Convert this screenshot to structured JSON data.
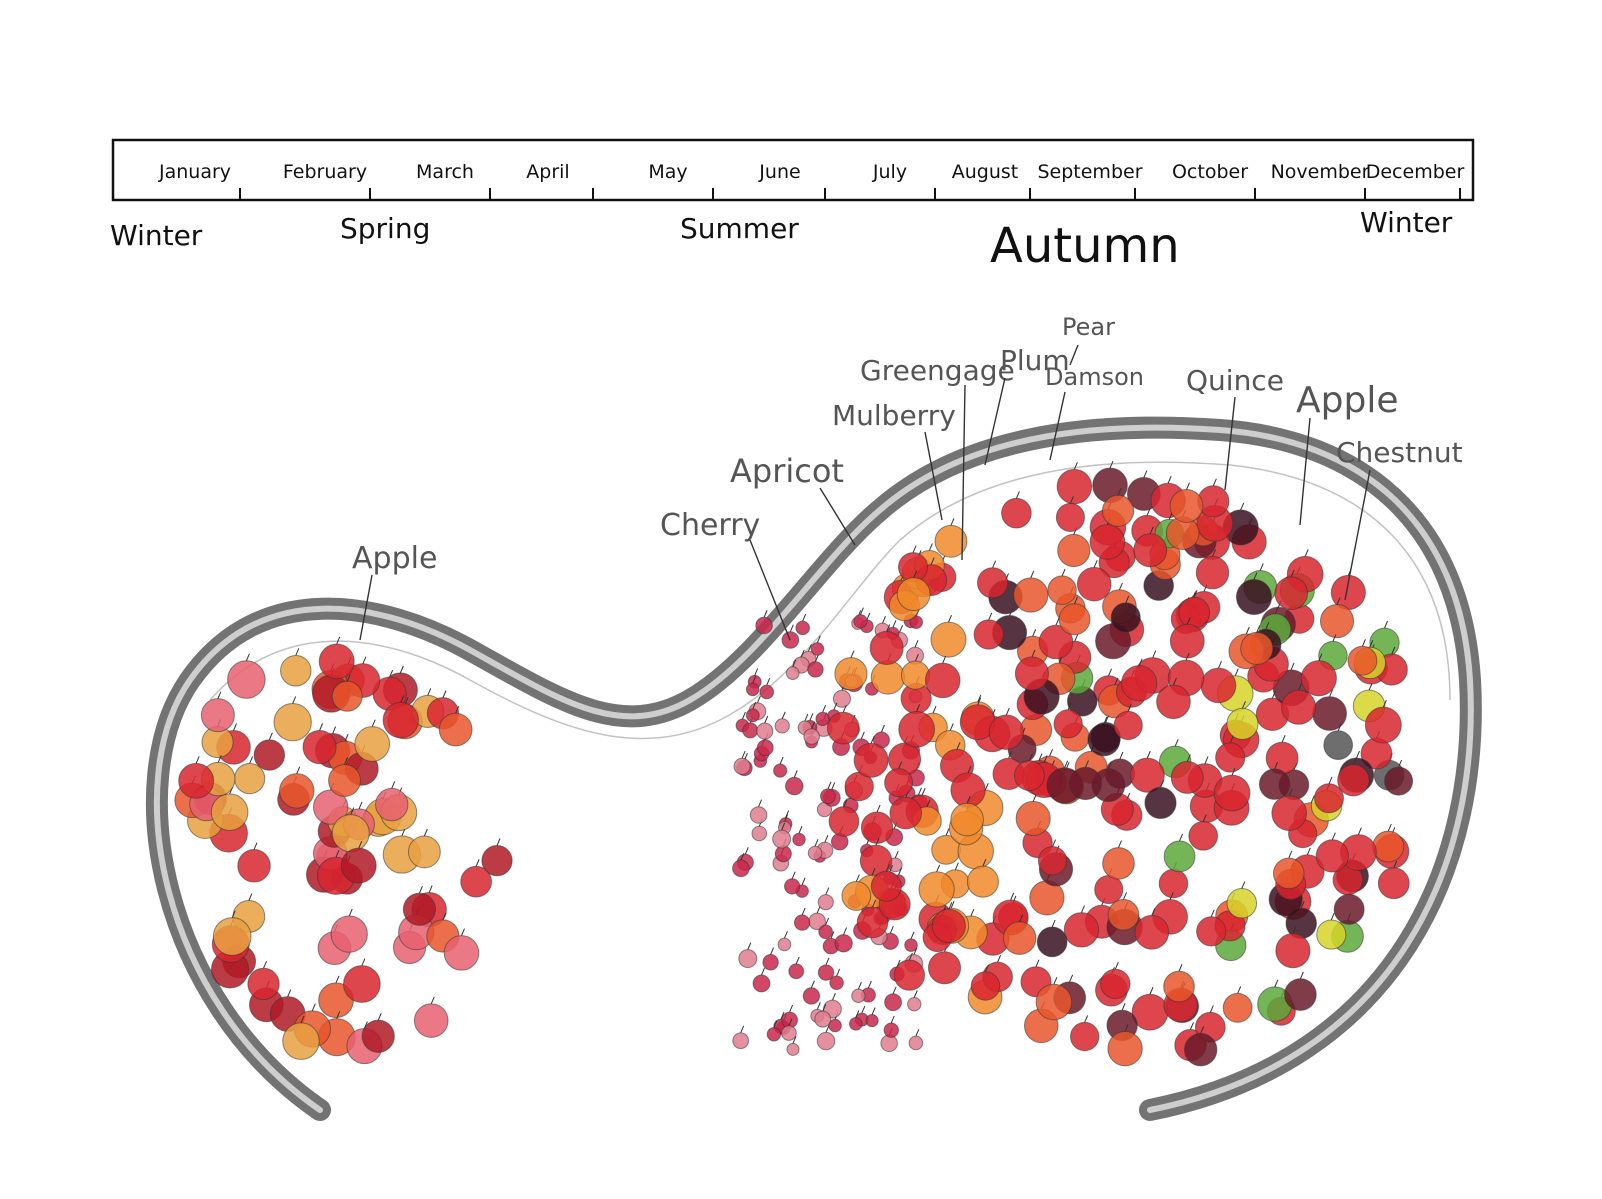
{
  "timeline": {
    "months": [
      "January",
      "February",
      "March",
      "April",
      "May",
      "June",
      "July",
      "August",
      "September",
      "October",
      "November",
      "December"
    ],
    "seasons": [
      {
        "name": "Winter",
        "key": "winter-start"
      },
      {
        "name": "Spring",
        "key": "spring"
      },
      {
        "name": "Summer",
        "key": "summer"
      },
      {
        "name": "Autumn",
        "key": "autumn"
      },
      {
        "name": "Winter",
        "key": "winter-end"
      }
    ]
  },
  "fruit_labels": [
    {
      "key": "apple-left",
      "text": "Apple"
    },
    {
      "key": "cherry",
      "text": "Cherry"
    },
    {
      "key": "apricot",
      "text": "Apricot"
    },
    {
      "key": "mulberry",
      "text": "Mulberry"
    },
    {
      "key": "greengage",
      "text": "Greengage"
    },
    {
      "key": "plum",
      "text": "Plum"
    },
    {
      "key": "pear",
      "text": "Pear"
    },
    {
      "key": "damson",
      "text": "Damson"
    },
    {
      "key": "quince",
      "text": "Quince"
    },
    {
      "key": "apple-right",
      "text": "Apple"
    },
    {
      "key": "chestnut",
      "text": "Chestnut"
    }
  ],
  "colors": {
    "apple": "#d8262f",
    "apple_dark": "#b01a26",
    "apple_orange": "#e8562a",
    "cherry": "#c8284a",
    "cherry_light": "#e07c8e",
    "apricot": "#f08a2a",
    "greengage": "#5aa83a",
    "plum": "#6b1a2a",
    "mulberry": "#3a1020",
    "quince": "#d6d428",
    "chestnut": "#555555",
    "bowl": "#6e6e6e"
  }
}
